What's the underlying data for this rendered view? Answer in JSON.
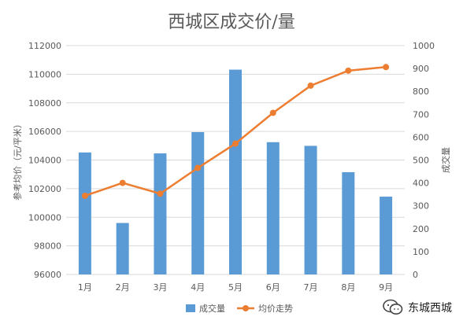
{
  "chart_data": {
    "type": "bar",
    "title": "西城区成交价/量",
    "categories": [
      "1月",
      "2月",
      "3月",
      "4月",
      "5月",
      "6月",
      "7月",
      "8月",
      "9月"
    ],
    "series": [
      {
        "name": "成交量",
        "type": "bar",
        "axis": "right",
        "color": "#5B9BD5",
        "values": [
          533,
          225,
          529,
          622,
          895,
          578,
          562,
          447,
          340
        ]
      },
      {
        "name": "均价走势",
        "type": "line",
        "axis": "left",
        "color": "#ED7D31",
        "values": [
          101500,
          102400,
          101650,
          103450,
          105150,
          107300,
          109200,
          110250,
          110500
        ]
      }
    ],
    "ylabel": "参考均价（元/平米）",
    "y2label": "成交量",
    "ylim": [
      96000,
      112000
    ],
    "y2lim": [
      0,
      1000
    ],
    "yticks": [
      "96000",
      "98000",
      "100000",
      "102000",
      "104000",
      "106000",
      "108000",
      "110000",
      "112000"
    ],
    "y2ticks": [
      "0",
      "100",
      "200",
      "300",
      "400",
      "500",
      "600",
      "700",
      "800",
      "900",
      "1000"
    ],
    "grid": true,
    "legend_position": "bottom"
  },
  "watermark": {
    "text": "东城西城",
    "icon": "wechat-icon"
  }
}
